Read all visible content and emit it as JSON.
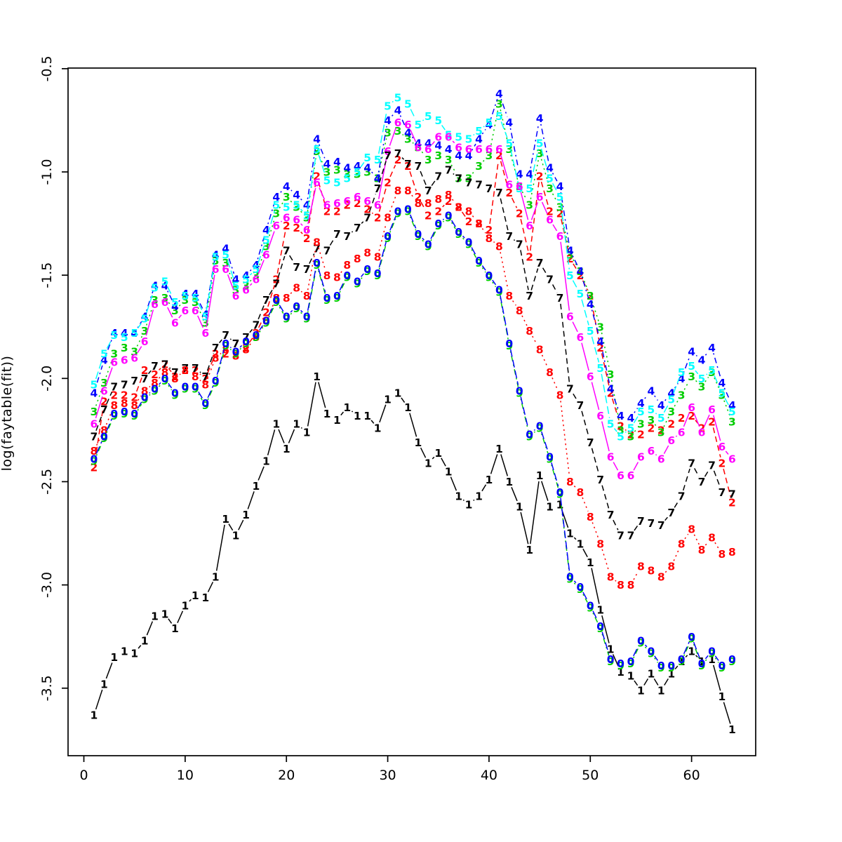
{
  "chart_data": {
    "type": "line",
    "title": "",
    "xlabel": "",
    "ylabel": "log(faytable(fit))",
    "x_start": 1,
    "x_step": 1,
    "n_points": 64,
    "xlim": [
      -1.56,
      66.33
    ],
    "ylim": [
      -3.827,
      -0.497
    ],
    "x_ticks": [
      0,
      10,
      20,
      30,
      40,
      50,
      60
    ],
    "y_ticks": [
      -3.5,
      -3.0,
      -2.5,
      -2.0,
      -1.5,
      -1.0,
      -0.5
    ],
    "grid": false,
    "legend": "none",
    "plot_style": "R matplot type=b, digits as plotting characters",
    "colors": {
      "black": "#000000",
      "red": "#FF0000",
      "green": "#00CD00",
      "blue": "#0000FF",
      "cyan": "#00FFFF",
      "magenta": "#FF00FF"
    },
    "series": [
      {
        "pch": "1",
        "color": "#000000",
        "lty": "solid",
        "values": [
          -3.63,
          -3.48,
          -3.35,
          -3.32,
          -3.33,
          -3.27,
          -3.15,
          -3.14,
          -3.21,
          -3.1,
          -3.05,
          -3.06,
          -2.96,
          -2.68,
          -2.76,
          -2.66,
          -2.52,
          -2.4,
          -2.22,
          -2.34,
          -2.22,
          -2.26,
          -1.99,
          -2.17,
          -2.2,
          -2.14,
          -2.18,
          -2.18,
          -2.24,
          -2.1,
          -2.07,
          -2.14,
          -2.31,
          -2.41,
          -2.36,
          -2.45,
          -2.57,
          -2.61,
          -2.57,
          -2.49,
          -2.34,
          -2.5,
          -2.62,
          -2.83,
          -2.47,
          -2.62,
          -2.61,
          -2.75,
          -2.8,
          -2.89,
          -3.12,
          -3.31,
          -3.42,
          -3.44,
          -3.51,
          -3.43,
          -3.51,
          -3.43,
          -3.37,
          -3.32,
          -3.37,
          -3.36,
          -3.54,
          -3.7
        ]
      },
      {
        "pch": "2",
        "color": "#FF0000",
        "lty": "dashed",
        "values": [
          -2.43,
          -2.11,
          -2.08,
          -2.08,
          -2.09,
          -1.96,
          -1.98,
          -1.93,
          -1.99,
          -1.96,
          -1.96,
          -2.0,
          -1.88,
          -1.88,
          -1.88,
          -1.85,
          -1.78,
          -1.68,
          -1.52,
          -1.26,
          -1.27,
          -1.32,
          -1.02,
          -1.19,
          -1.19,
          -1.16,
          -1.15,
          -1.18,
          -1.22,
          -1.05,
          -0.94,
          -0.97,
          -1.12,
          -1.21,
          -1.19,
          -1.14,
          -1.17,
          -1.24,
          -1.25,
          -1.28,
          -0.92,
          -1.1,
          -1.2,
          -1.41,
          -1.02,
          -1.19,
          -1.2,
          -1.42,
          -1.5,
          -1.6,
          -1.85,
          -2.07,
          -2.23,
          -2.27,
          -2.27,
          -2.24,
          -2.25,
          -2.22,
          -2.19,
          -2.18,
          -2.24,
          -2.21,
          -2.41,
          -2.6
        ]
      },
      {
        "pch": "3",
        "color": "#00CD00",
        "lty": "dotted",
        "values": [
          -2.16,
          -2.02,
          -1.88,
          -1.85,
          -1.87,
          -1.77,
          -1.62,
          -1.61,
          -1.67,
          -1.62,
          -1.63,
          -1.73,
          -1.43,
          -1.44,
          -1.57,
          -1.55,
          -1.5,
          -1.36,
          -1.2,
          -1.12,
          -1.17,
          -1.22,
          -0.9,
          -1.0,
          -0.99,
          -1.01,
          -1.01,
          -1.0,
          -1.03,
          -0.81,
          -0.8,
          -0.84,
          -0.88,
          -0.94,
          -0.92,
          -0.94,
          -1.03,
          -1.03,
          -0.97,
          -0.92,
          -0.67,
          -0.89,
          -1.07,
          -1.16,
          -0.91,
          -1.08,
          -1.17,
          -1.4,
          -1.48,
          -1.6,
          -1.75,
          -1.98,
          -2.25,
          -2.28,
          -2.22,
          -2.2,
          -2.26,
          -2.16,
          -2.08,
          -1.99,
          -2.04,
          -1.97,
          -2.08,
          -2.21
        ]
      },
      {
        "pch": "4",
        "color": "#0000FF",
        "lty": "dotdash",
        "values": [
          -2.07,
          -1.91,
          -1.78,
          -1.78,
          -1.78,
          -1.7,
          -1.55,
          -1.55,
          -1.65,
          -1.59,
          -1.59,
          -1.69,
          -1.4,
          -1.37,
          -1.52,
          -1.5,
          -1.45,
          -1.28,
          -1.12,
          -1.07,
          -1.11,
          -1.16,
          -0.84,
          -0.96,
          -0.95,
          -0.98,
          -0.97,
          -0.98,
          -1.03,
          -0.75,
          -0.7,
          -0.81,
          -0.86,
          -0.86,
          -0.87,
          -0.89,
          -0.92,
          -0.92,
          -0.84,
          -0.77,
          -0.62,
          -0.76,
          -1.01,
          -1.01,
          -0.74,
          -0.98,
          -1.07,
          -1.38,
          -1.48,
          -1.64,
          -1.82,
          -2.05,
          -2.18,
          -2.19,
          -2.12,
          -2.06,
          -2.13,
          -2.07,
          -2.0,
          -1.87,
          -1.91,
          -1.85,
          -2.02,
          -2.13
        ]
      },
      {
        "pch": "5",
        "color": "#00FFFF",
        "lty": "longdash",
        "values": [
          -2.03,
          -1.88,
          -1.79,
          -1.8,
          -1.78,
          -1.71,
          -1.56,
          -1.53,
          -1.63,
          -1.6,
          -1.61,
          -1.7,
          -1.41,
          -1.4,
          -1.55,
          -1.52,
          -1.47,
          -1.33,
          -1.16,
          -1.17,
          -1.16,
          -1.21,
          -0.89,
          -1.04,
          -1.05,
          -1.03,
          -1.0,
          -0.93,
          -0.94,
          -0.68,
          -0.64,
          -0.67,
          -0.77,
          -0.73,
          -0.75,
          -0.82,
          -0.83,
          -0.84,
          -0.8,
          -0.76,
          -0.73,
          -0.86,
          -1.08,
          -1.08,
          -0.86,
          -1.03,
          -1.12,
          -1.5,
          -1.59,
          -1.77,
          -1.95,
          -2.22,
          -2.28,
          -2.24,
          -2.16,
          -2.15,
          -2.19,
          -2.1,
          -1.97,
          -1.94,
          -2.0,
          -1.96,
          -2.07,
          -2.16
        ]
      },
      {
        "pch": "6",
        "color": "#FF00FF",
        "lty": "solid",
        "values": [
          -2.22,
          -2.06,
          -1.92,
          -1.91,
          -1.9,
          -1.82,
          -1.64,
          -1.63,
          -1.73,
          -1.67,
          -1.67,
          -1.78,
          -1.47,
          -1.47,
          -1.6,
          -1.57,
          -1.52,
          -1.4,
          -1.26,
          -1.22,
          -1.23,
          -1.28,
          -1.05,
          -1.16,
          -1.15,
          -1.14,
          -1.12,
          -1.14,
          -1.16,
          -0.9,
          -0.76,
          -0.77,
          -0.88,
          -0.89,
          -0.83,
          -0.83,
          -0.88,
          -0.89,
          -0.89,
          -0.89,
          -0.89,
          -1.06,
          -1.07,
          -1.26,
          -1.12,
          -1.23,
          -1.31,
          -1.7,
          -1.8,
          -1.99,
          -2.18,
          -2.38,
          -2.47,
          -2.47,
          -2.38,
          -2.35,
          -2.39,
          -2.3,
          -2.26,
          -2.14,
          -2.26,
          -2.15,
          -2.33,
          -2.39
        ]
      },
      {
        "pch": "7",
        "color": "#000000",
        "lty": "dashed",
        "values": [
          -2.28,
          -2.15,
          -2.04,
          -2.03,
          -2.01,
          -2.0,
          -1.94,
          -1.93,
          -1.97,
          -1.95,
          -1.95,
          -1.99,
          -1.85,
          -1.79,
          -1.83,
          -1.8,
          -1.74,
          -1.62,
          -1.54,
          -1.38,
          -1.46,
          -1.47,
          -1.37,
          -1.38,
          -1.3,
          -1.31,
          -1.27,
          -1.22,
          -1.08,
          -0.92,
          -0.91,
          -0.96,
          -0.97,
          -1.09,
          -1.02,
          -0.99,
          -1.03,
          -1.05,
          -1.06,
          -1.08,
          -1.1,
          -1.31,
          -1.35,
          -1.6,
          -1.44,
          -1.52,
          -1.61,
          -2.05,
          -2.13,
          -2.31,
          -2.49,
          -2.66,
          -2.76,
          -2.76,
          -2.69,
          -2.7,
          -2.71,
          -2.65,
          -2.57,
          -2.41,
          -2.5,
          -2.42,
          -2.55,
          -2.56
        ]
      },
      {
        "pch": "8",
        "color": "#FF0000",
        "lty": "dotted",
        "values": [
          -2.35,
          -2.25,
          -2.13,
          -2.12,
          -2.13,
          -2.06,
          -2.02,
          -1.97,
          -2.0,
          -1.96,
          -1.99,
          -2.03,
          -1.9,
          -1.86,
          -1.89,
          -1.86,
          -1.8,
          -1.72,
          -1.61,
          -1.61,
          -1.56,
          -1.6,
          -1.34,
          -1.5,
          -1.51,
          -1.45,
          -1.42,
          -1.39,
          -1.41,
          -1.22,
          -1.09,
          -1.09,
          -1.15,
          -1.15,
          -1.13,
          -1.11,
          -1.17,
          -1.19,
          -1.25,
          -1.32,
          -1.36,
          -1.6,
          -1.67,
          -1.77,
          -1.86,
          -1.97,
          -2.08,
          -2.5,
          -2.55,
          -2.67,
          -2.8,
          -2.96,
          -3.0,
          -3.0,
          -2.91,
          -2.93,
          -2.96,
          -2.91,
          -2.8,
          -2.73,
          -2.83,
          -2.77,
          -2.85,
          -2.84
        ]
      },
      {
        "pch": "9",
        "color": "#00CD00",
        "lty": "dotdash",
        "values": [
          -2.4,
          -2.29,
          -2.18,
          -2.17,
          -2.18,
          -2.1,
          -2.06,
          -2.01,
          -2.08,
          -2.05,
          -2.05,
          -2.13,
          -2.02,
          -1.84,
          -1.88,
          -1.83,
          -1.8,
          -1.73,
          -1.63,
          -1.71,
          -1.66,
          -1.71,
          -1.45,
          -1.62,
          -1.61,
          -1.51,
          -1.54,
          -1.48,
          -1.5,
          -1.32,
          -1.2,
          -1.19,
          -1.31,
          -1.36,
          -1.26,
          -1.22,
          -1.3,
          -1.35,
          -1.44,
          -1.51,
          -1.58,
          -1.84,
          -2.07,
          -2.28,
          -2.24,
          -2.39,
          -2.56,
          -2.97,
          -3.02,
          -3.11,
          -3.21,
          -3.37,
          -3.39,
          -3.38,
          -3.28,
          -3.33,
          -3.4,
          -3.4,
          -3.37,
          -3.26,
          -3.39,
          -3.33,
          -3.4,
          -3.37
        ]
      },
      {
        "pch": "0",
        "color": "#0000FF",
        "lty": "longdash",
        "values": [
          -2.39,
          -2.28,
          -2.17,
          -2.16,
          -2.17,
          -2.09,
          -2.05,
          -2.0,
          -2.07,
          -2.04,
          -2.04,
          -2.12,
          -2.01,
          -1.83,
          -1.87,
          -1.82,
          -1.79,
          -1.72,
          -1.62,
          -1.7,
          -1.65,
          -1.7,
          -1.44,
          -1.61,
          -1.6,
          -1.5,
          -1.53,
          -1.47,
          -1.49,
          -1.31,
          -1.19,
          -1.18,
          -1.3,
          -1.35,
          -1.25,
          -1.21,
          -1.29,
          -1.34,
          -1.43,
          -1.5,
          -1.57,
          -1.83,
          -2.06,
          -2.27,
          -2.23,
          -2.38,
          -2.55,
          -2.96,
          -3.01,
          -3.1,
          -3.2,
          -3.36,
          -3.38,
          -3.37,
          -3.27,
          -3.32,
          -3.39,
          -3.39,
          -3.36,
          -3.25,
          -3.38,
          -3.32,
          -3.39,
          -3.36
        ]
      }
    ]
  }
}
